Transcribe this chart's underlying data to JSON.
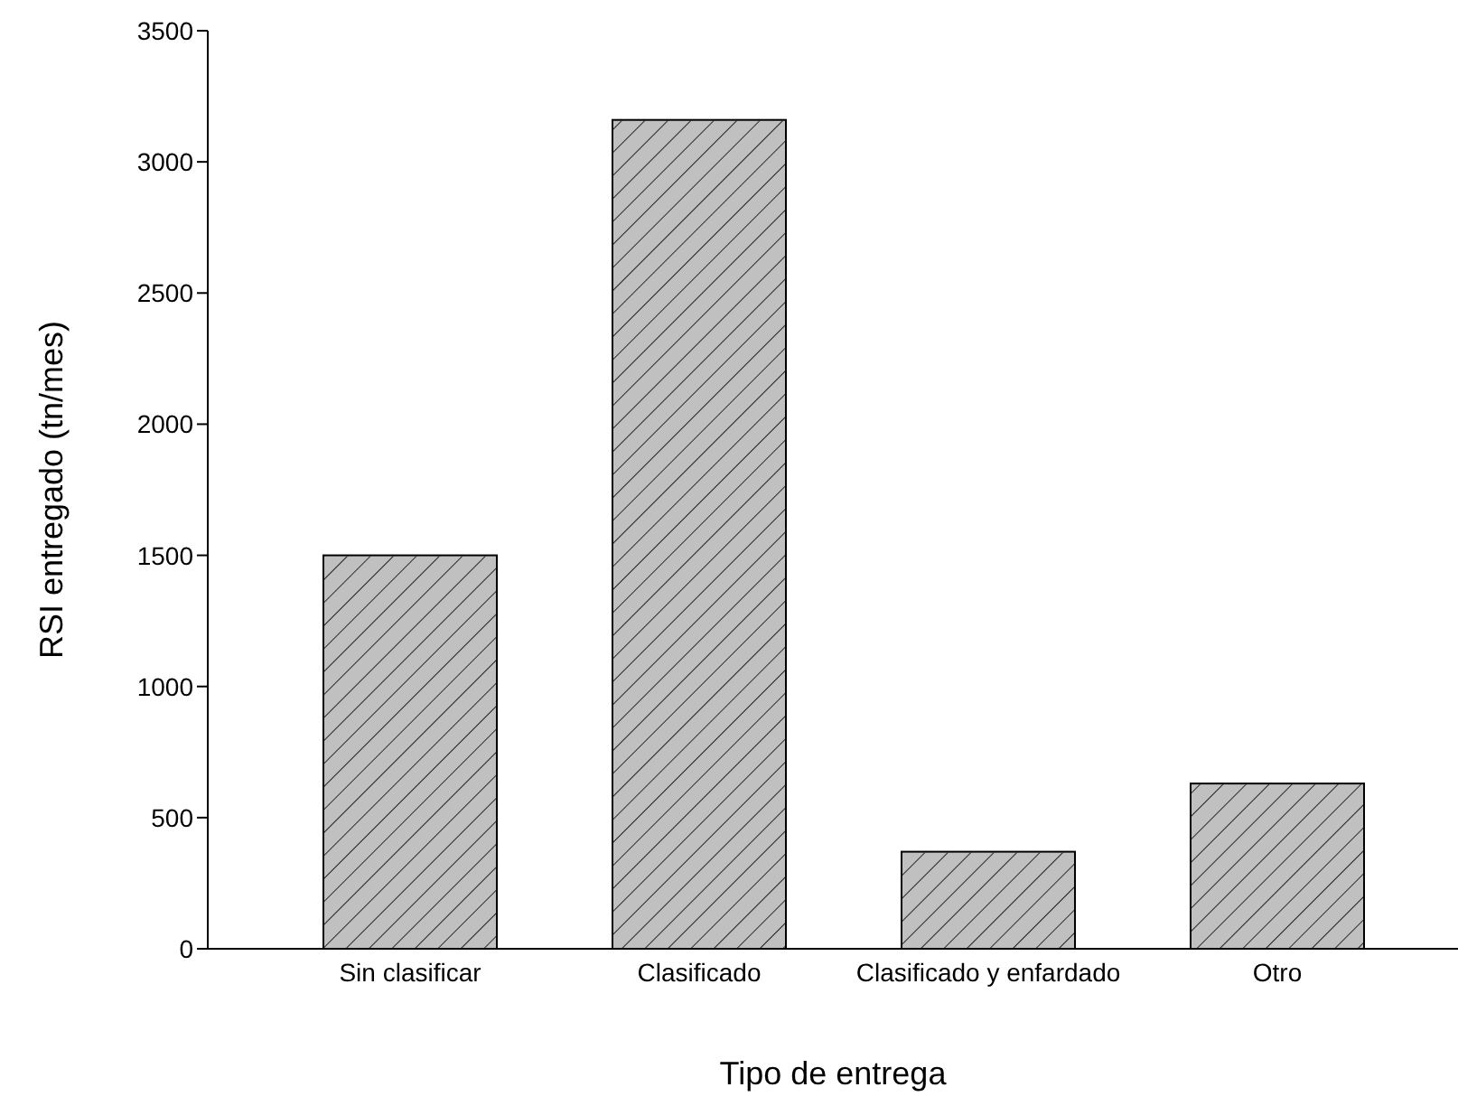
{
  "chart_data": {
    "type": "bar",
    "xlabel": "Tipo de entrega",
    "ylabel": "RSI entregado (tn/mes)",
    "categories": [
      "Sin clasificar",
      "Clasificado",
      "Clasificado y enfardado",
      "Otro"
    ],
    "values": [
      1500,
      3160,
      370,
      630
    ],
    "color": "#c0c0c0",
    "ylim": [
      0,
      3500
    ],
    "yticks": [
      0,
      500,
      1000,
      1500,
      2000,
      2500,
      3000,
      3500
    ],
    "grid": false
  }
}
